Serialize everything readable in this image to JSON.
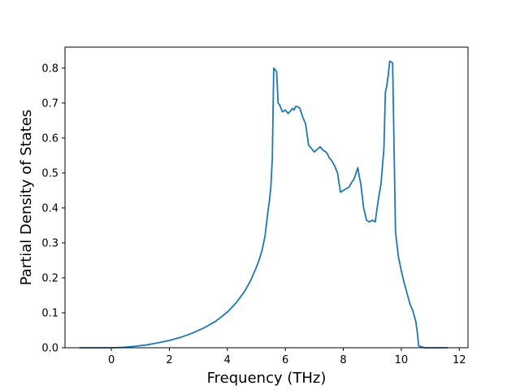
{
  "chart_data": {
    "type": "line",
    "title": "",
    "xlabel": "Frequency (THz)",
    "ylabel": "Partial Density of States",
    "xlim": [
      -1.6,
      12.3
    ],
    "ylim": [
      0.0,
      0.86
    ],
    "xticks": [
      0,
      2,
      4,
      6,
      8,
      10,
      12
    ],
    "yticks": [
      0.0,
      0.1,
      0.2,
      0.3,
      0.4,
      0.5,
      0.6,
      0.7,
      0.8
    ],
    "xtick_labels": [
      "0",
      "2",
      "4",
      "6",
      "8",
      "10",
      "12"
    ],
    "ytick_labels": [
      "0.0",
      "0.1",
      "0.2",
      "0.3",
      "0.4",
      "0.5",
      "0.6",
      "0.7",
      "0.8"
    ],
    "grid": false,
    "legend": "none",
    "series": [
      {
        "color": "#1f77b4",
        "x": [
          -1.1,
          -0.5,
          0.0,
          0.4,
          0.8,
          1.2,
          1.6,
          2.0,
          2.4,
          2.8,
          3.2,
          3.6,
          4.0,
          4.3,
          4.6,
          4.8,
          5.0,
          5.1,
          5.2,
          5.3,
          5.4,
          5.45,
          5.5,
          5.55,
          5.6,
          5.7,
          5.75,
          5.8,
          5.9,
          6.0,
          6.1,
          6.2,
          6.25,
          6.3,
          6.35,
          6.4,
          6.45,
          6.5,
          6.6,
          6.7,
          6.8,
          7.0,
          7.2,
          7.3,
          7.4,
          7.45,
          7.5,
          7.6,
          7.7,
          7.8,
          7.9,
          8.0,
          8.1,
          8.2,
          8.3,
          8.35,
          8.4,
          8.5,
          8.55,
          8.6,
          8.7,
          8.8,
          8.9,
          9.0,
          9.1,
          9.2,
          9.3,
          9.4,
          9.45,
          9.5,
          9.55,
          9.6,
          9.7,
          9.8,
          9.9,
          10.0,
          10.1,
          10.2,
          10.3,
          10.4,
          10.5,
          10.55,
          10.6,
          10.8,
          11.2,
          11.6
        ],
        "y": [
          0.0,
          0.0,
          0.0,
          0.001,
          0.004,
          0.008,
          0.014,
          0.021,
          0.03,
          0.042,
          0.057,
          0.076,
          0.102,
          0.128,
          0.162,
          0.192,
          0.23,
          0.252,
          0.28,
          0.32,
          0.39,
          0.42,
          0.46,
          0.54,
          0.8,
          0.79,
          0.7,
          0.695,
          0.675,
          0.68,
          0.67,
          0.68,
          0.685,
          0.68,
          0.69,
          0.69,
          0.688,
          0.685,
          0.66,
          0.64,
          0.58,
          0.56,
          0.575,
          0.565,
          0.56,
          0.555,
          0.545,
          0.535,
          0.52,
          0.5,
          0.445,
          0.45,
          0.455,
          0.46,
          0.475,
          0.48,
          0.49,
          0.515,
          0.49,
          0.47,
          0.4,
          0.365,
          0.36,
          0.365,
          0.36,
          0.42,
          0.47,
          0.57,
          0.73,
          0.75,
          0.78,
          0.82,
          0.815,
          0.33,
          0.26,
          0.22,
          0.185,
          0.155,
          0.125,
          0.105,
          0.075,
          0.045,
          0.005,
          0.0,
          0.0,
          0.0
        ]
      }
    ]
  }
}
